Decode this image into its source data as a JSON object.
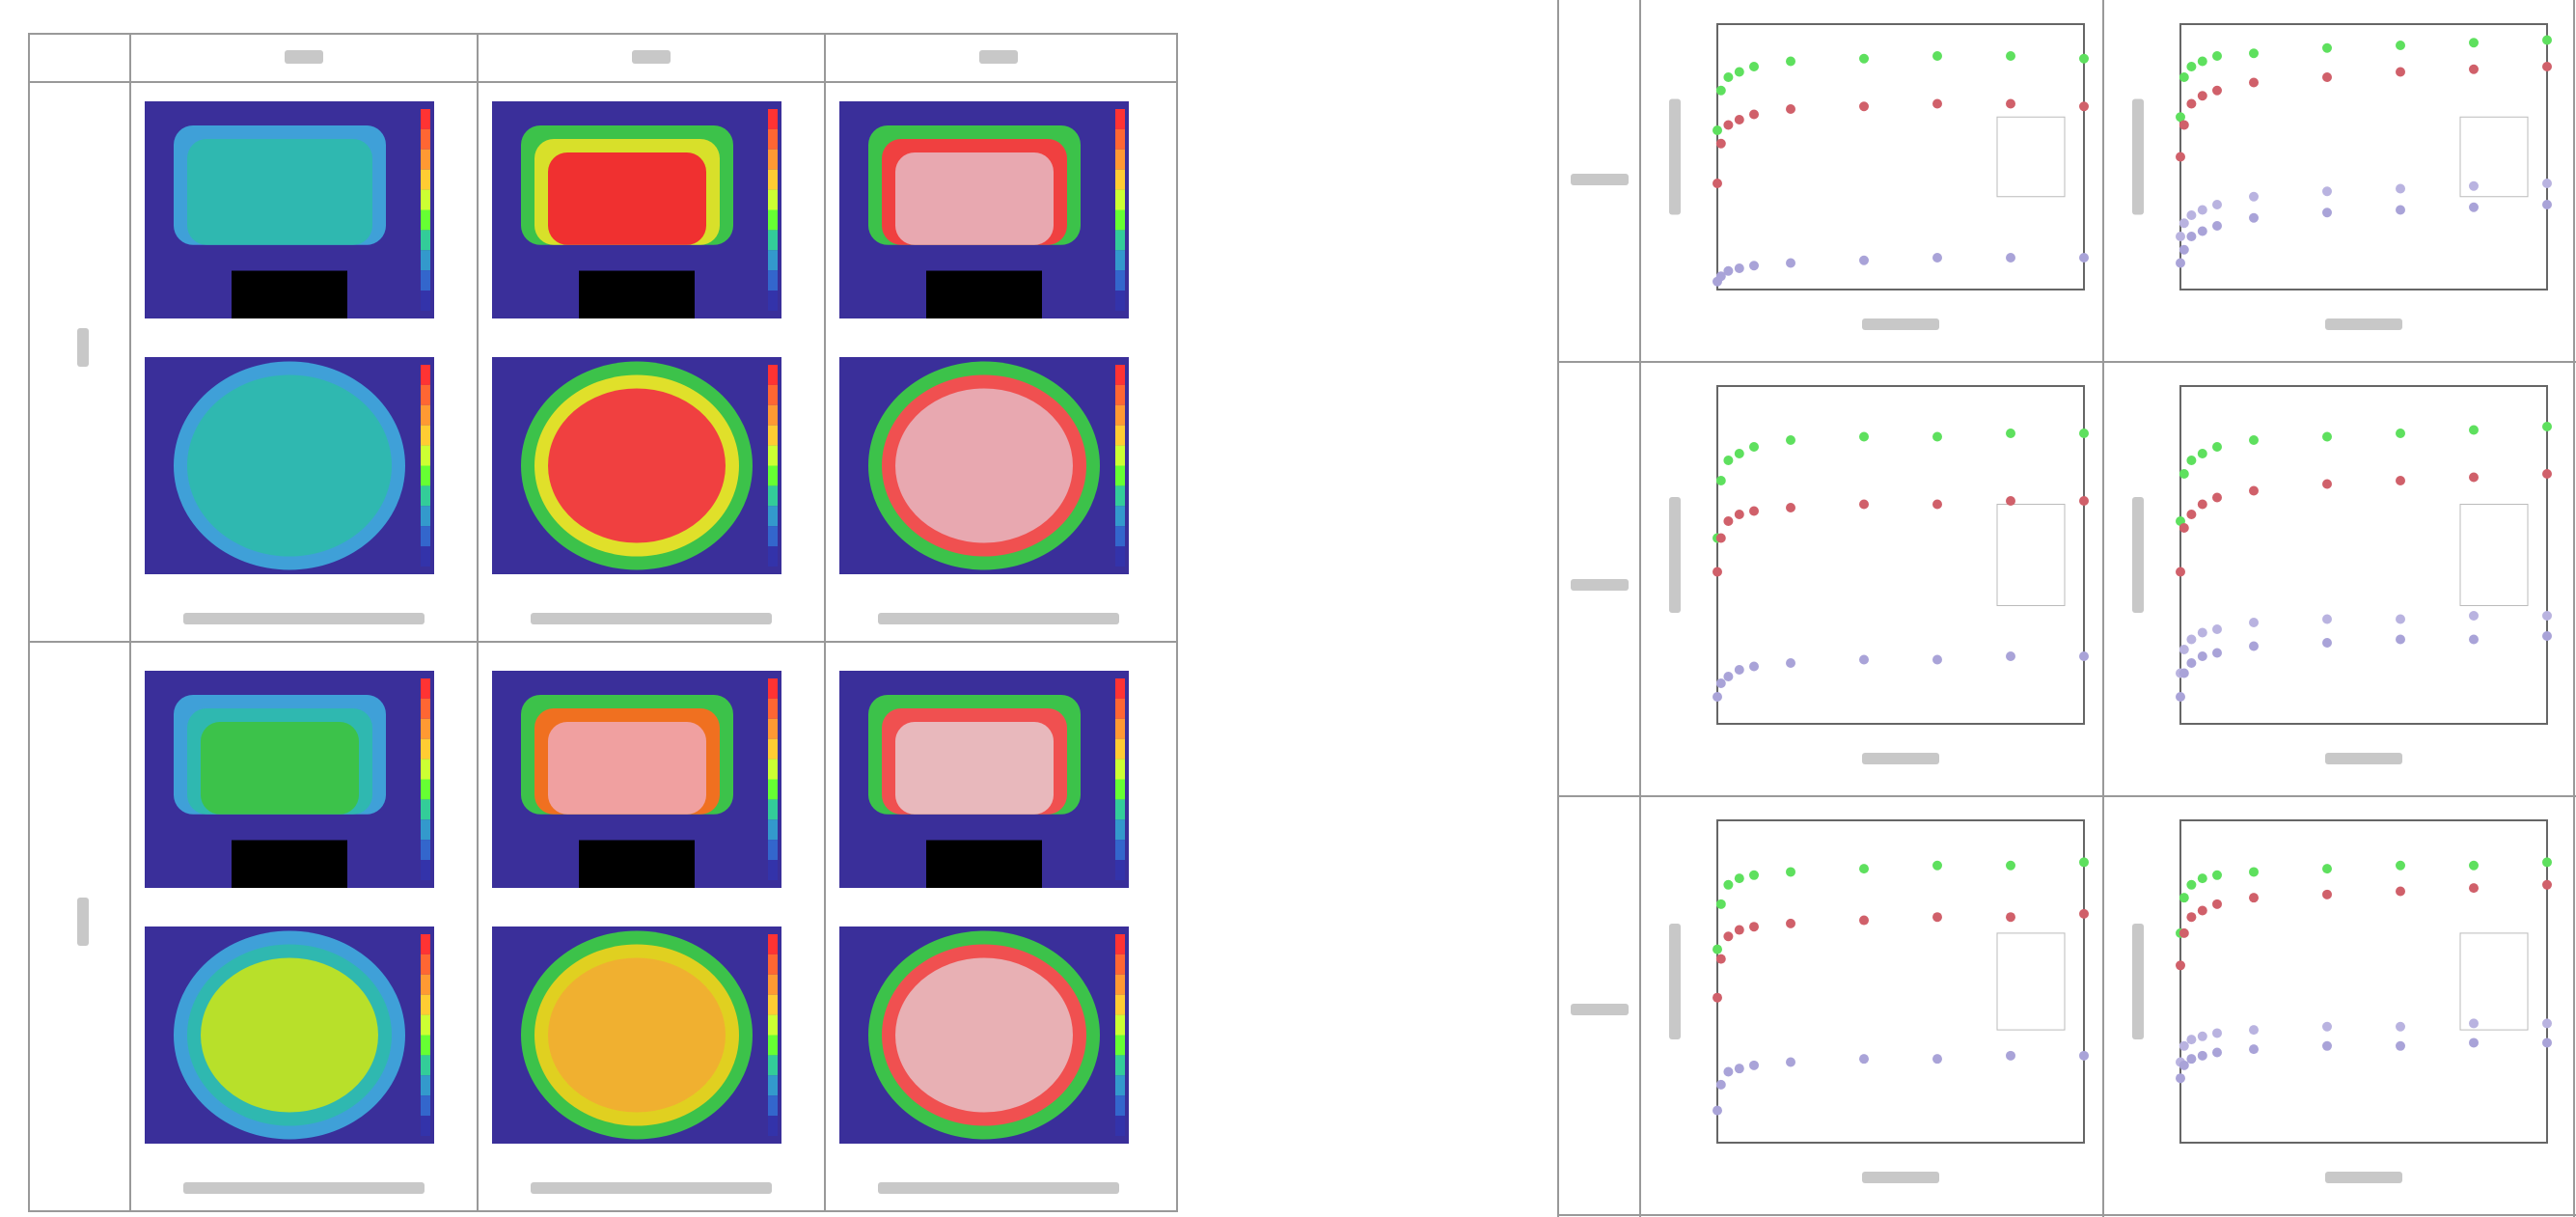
{
  "charts": [
    {
      "type": "scatter",
      "x": [
        0,
        1,
        3,
        6,
        10,
        20,
        40,
        60,
        80,
        100
      ],
      "xlim": [
        0,
        100
      ],
      "ylim": [
        0,
        100
      ],
      "series": [
        {
          "color": "#5ee05e",
          "values": [
            60,
            75,
            80,
            82,
            84,
            86,
            87,
            88,
            88,
            87
          ]
        },
        {
          "color": "#d0606a",
          "values": [
            40,
            55,
            62,
            64,
            66,
            68,
            69,
            70,
            70,
            69
          ]
        },
        {
          "color": "#a9a3d8",
          "values": [
            3,
            5,
            7,
            8,
            9,
            10,
            11,
            12,
            12,
            12
          ]
        }
      ]
    },
    {
      "type": "scatter",
      "x": [
        0,
        1,
        3,
        6,
        10,
        20,
        40,
        60,
        80,
        100
      ],
      "xlim": [
        0,
        100
      ],
      "ylim": [
        0,
        100
      ],
      "series": [
        {
          "color": "#5ee05e",
          "values": [
            65,
            80,
            84,
            86,
            88,
            89,
            91,
            92,
            93,
            94
          ]
        },
        {
          "color": "#d0606a",
          "values": [
            50,
            62,
            70,
            73,
            75,
            78,
            80,
            82,
            83,
            84
          ]
        },
        {
          "color": "#b9b3e0",
          "values": [
            20,
            25,
            28,
            30,
            32,
            35,
            37,
            38,
            39,
            40
          ]
        },
        {
          "color": "#a9a3d8",
          "values": [
            10,
            15,
            20,
            22,
            24,
            27,
            29,
            30,
            31,
            32
          ]
        }
      ]
    },
    {
      "type": "scatter",
      "x": [
        0,
        1,
        3,
        6,
        10,
        20,
        40,
        60,
        80,
        100
      ],
      "xlim": [
        0,
        100
      ],
      "ylim": [
        0,
        100
      ],
      "series": [
        {
          "color": "#5ee05e",
          "values": [
            55,
            72,
            78,
            80,
            82,
            84,
            85,
            85,
            86,
            86
          ]
        },
        {
          "color": "#d0606a",
          "values": [
            45,
            55,
            60,
            62,
            63,
            64,
            65,
            65,
            66,
            66
          ]
        },
        {
          "color": "#a9a3d8",
          "values": [
            8,
            12,
            14,
            16,
            17,
            18,
            19,
            19,
            20,
            20
          ]
        }
      ]
    },
    {
      "type": "scatter",
      "x": [
        0,
        1,
        3,
        6,
        10,
        20,
        40,
        60,
        80,
        100
      ],
      "xlim": [
        0,
        100
      ],
      "ylim": [
        0,
        100
      ],
      "series": [
        {
          "color": "#5ee05e",
          "values": [
            60,
            74,
            78,
            80,
            82,
            84,
            85,
            86,
            87,
            88
          ]
        },
        {
          "color": "#d0606a",
          "values": [
            45,
            58,
            62,
            65,
            67,
            69,
            71,
            72,
            73,
            74
          ]
        },
        {
          "color": "#b9b3e0",
          "values": [
            15,
            22,
            25,
            27,
            28,
            30,
            31,
            31,
            32,
            32
          ]
        },
        {
          "color": "#a9a3d8",
          "values": [
            8,
            15,
            18,
            20,
            21,
            23,
            24,
            25,
            25,
            26
          ]
        }
      ]
    },
    {
      "type": "scatter",
      "x": [
        0,
        1,
        3,
        6,
        10,
        20,
        40,
        60,
        80,
        100
      ],
      "xlim": [
        0,
        100
      ],
      "ylim": [
        0,
        100
      ],
      "series": [
        {
          "color": "#5ee05e",
          "values": [
            60,
            74,
            80,
            82,
            83,
            84,
            85,
            86,
            86,
            87
          ]
        },
        {
          "color": "#d0606a",
          "values": [
            45,
            57,
            64,
            66,
            67,
            68,
            69,
            70,
            70,
            71
          ]
        },
        {
          "color": "#a9a3d8",
          "values": [
            10,
            18,
            22,
            23,
            24,
            25,
            26,
            26,
            27,
            27
          ]
        }
      ]
    },
    {
      "type": "scatter",
      "x": [
        0,
        1,
        3,
        6,
        10,
        20,
        40,
        60,
        80,
        100
      ],
      "xlim": [
        0,
        100
      ],
      "ylim": [
        0,
        100
      ],
      "series": [
        {
          "color": "#5ee05e",
          "values": [
            65,
            76,
            80,
            82,
            83,
            84,
            85,
            86,
            86,
            87
          ]
        },
        {
          "color": "#d0606a",
          "values": [
            55,
            65,
            70,
            72,
            74,
            76,
            77,
            78,
            79,
            80
          ]
        },
        {
          "color": "#b9b3e0",
          "values": [
            25,
            30,
            32,
            33,
            34,
            35,
            36,
            36,
            37,
            37
          ]
        },
        {
          "color": "#a9a3d8",
          "values": [
            20,
            24,
            26,
            27,
            28,
            29,
            30,
            30,
            31,
            31
          ]
        }
      ]
    }
  ]
}
